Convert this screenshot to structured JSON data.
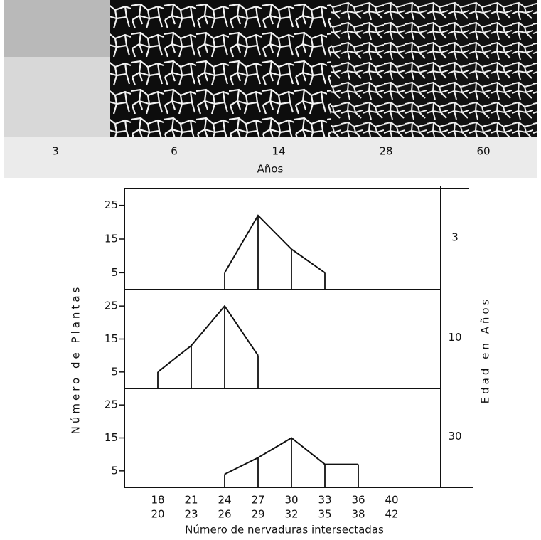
{
  "photo_strip": {
    "labels": [
      "3",
      "6",
      "14",
      "28",
      "60"
    ],
    "axis_label": "Años"
  },
  "figure": {
    "y_label": "Número de Plantas",
    "x_label": "Número de nervaduras intersectadas",
    "right_label": "Edad en Años"
  },
  "chart_data": [
    {
      "type": "line",
      "title": "3",
      "values": [
        null,
        null,
        5,
        22,
        12,
        5,
        null,
        null
      ],
      "ylim": [
        0,
        30
      ],
      "yticks": [
        5,
        15,
        25
      ]
    },
    {
      "type": "line",
      "title": "10",
      "values": [
        5,
        13,
        25,
        10,
        null,
        null,
        null,
        null
      ],
      "ylim": [
        0,
        30
      ],
      "yticks": [
        5,
        15,
        25
      ]
    },
    {
      "type": "line",
      "title": "30",
      "categories": [
        [
          "18",
          "20"
        ],
        [
          "21",
          "23"
        ],
        [
          "24",
          "26"
        ],
        [
          "27",
          "29"
        ],
        [
          "30",
          "32"
        ],
        [
          "33",
          "35"
        ],
        [
          "36",
          "38"
        ],
        [
          "40",
          "42"
        ]
      ],
      "values": [
        null,
        null,
        4,
        9,
        15,
        7,
        7,
        null
      ],
      "ylim": [
        0,
        30
      ],
      "yticks": [
        5,
        15,
        25
      ]
    }
  ]
}
